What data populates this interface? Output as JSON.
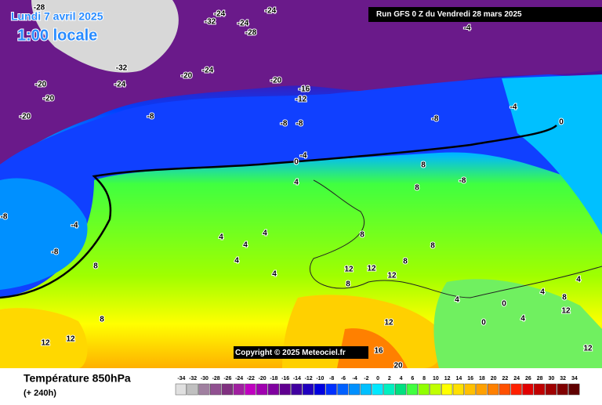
{
  "header": {
    "date": "Lundi 7 avril 2025",
    "time": "1:00 locale",
    "run": "Run GFS 0 Z du Vendredi 28 mars 2025",
    "copyright": "Copyright © 2025 Meteociel.fr"
  },
  "footer": {
    "title": "Température 850hPa",
    "lead": "(+ 240h)"
  },
  "map_labels": [
    -28,
    -24,
    -24,
    -24,
    -32,
    -28,
    -32,
    -24,
    -20,
    -20,
    -20,
    -24,
    -20,
    -16,
    -12,
    -8,
    -8,
    -8,
    -20,
    -8,
    -4,
    -4,
    0,
    -4,
    0,
    4,
    -8,
    -4,
    -8,
    -8,
    4,
    4,
    4,
    4,
    4,
    8,
    8,
    8,
    8,
    8,
    8,
    12,
    12,
    12,
    12,
    8,
    12,
    12,
    16,
    20,
    0,
    4,
    4,
    4,
    8,
    12,
    12,
    0,
    4,
    8
  ],
  "scale": {
    "labels": [
      -34,
      -32,
      -30,
      -28,
      -26,
      -24,
      -22,
      -20,
      -18,
      -16,
      -14,
      -12,
      -10,
      -8,
      -6,
      -4,
      -2,
      0,
      2,
      4,
      6,
      8,
      10,
      12,
      14,
      16,
      18,
      20,
      22,
      24,
      26,
      28,
      30,
      32,
      34
    ],
    "colors": [
      "#e0e0e0",
      "#c0c0c0",
      "#a080a0",
      "#905090",
      "#803080",
      "#a020a0",
      "#c000c0",
      "#a000b0",
      "#8000a0",
      "#600090",
      "#4000a0",
      "#2000c0",
      "#0000e0",
      "#0030ff",
      "#0060ff",
      "#0090ff",
      "#00c0ff",
      "#00e8ff",
      "#00f0c0",
      "#00e080",
      "#40ff40",
      "#90ff00",
      "#c0ff00",
      "#ffff00",
      "#ffe000",
      "#ffc000",
      "#ffa000",
      "#ff8000",
      "#ff5000",
      "#ff2000",
      "#e00000",
      "#c00000",
      "#a00000",
      "#800000",
      "#600000"
    ]
  }
}
